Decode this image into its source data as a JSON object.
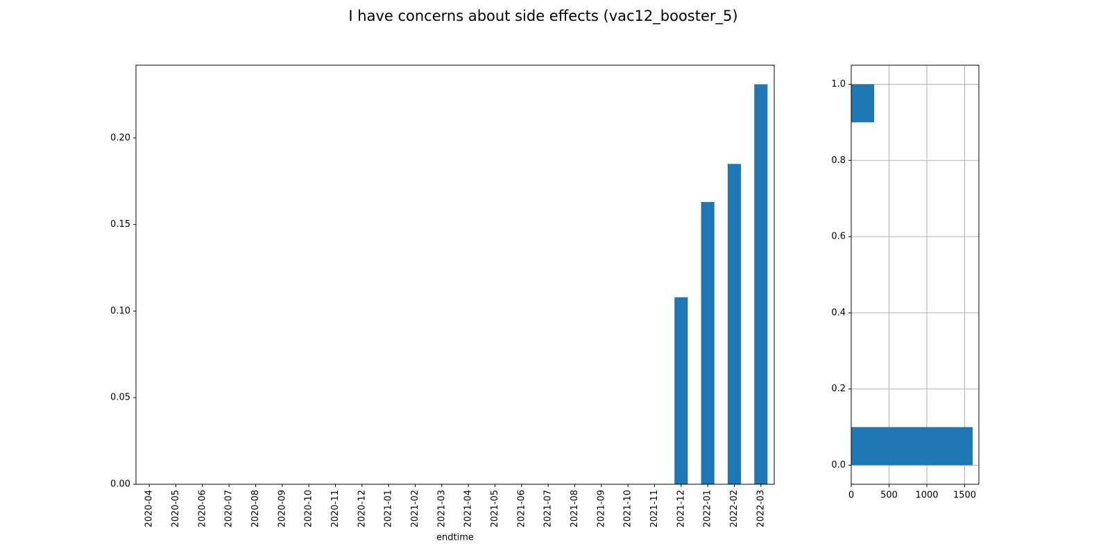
{
  "title": "I have concerns about side effects (vac12_booster_5)",
  "chart_data": [
    {
      "type": "bar",
      "x_label": "endtime",
      "categories": [
        "2020-04",
        "2020-05",
        "2020-06",
        "2020-07",
        "2020-08",
        "2020-09",
        "2020-10",
        "2020-11",
        "2020-12",
        "2021-01",
        "2021-02",
        "2021-03",
        "2021-04",
        "2021-05",
        "2021-06",
        "2021-07",
        "2021-08",
        "2021-09",
        "2021-10",
        "2021-11",
        "2021-12",
        "2022-01",
        "2022-02",
        "2022-03"
      ],
      "values": [
        0,
        0,
        0,
        0,
        0,
        0,
        0,
        0,
        0,
        0,
        0,
        0,
        0,
        0,
        0,
        0,
        0,
        0,
        0,
        0,
        0.108,
        0.163,
        0.185,
        0.231
      ],
      "color": "#1f77b4",
      "ylim": [
        0,
        0.242
      ],
      "yticks": [
        {
          "value": 0,
          "label": "0.00"
        },
        {
          "value": 0.05,
          "label": "0.05"
        },
        {
          "value": 0.1,
          "label": "0.10"
        },
        {
          "value": 0.15,
          "label": "0.15"
        },
        {
          "value": 0.2,
          "label": "0.20"
        }
      ],
      "grid": false
    },
    {
      "type": "histogram",
      "orientation": "horizontal",
      "bins": [
        0,
        0.1,
        0.2,
        0.3,
        0.4,
        0.5,
        0.6,
        0.7,
        0.8,
        0.9,
        1.0
      ],
      "values": [
        1606,
        0,
        0,
        0,
        0,
        0,
        0,
        0,
        0,
        303
      ],
      "color": "#1f77b4",
      "xlim": [
        0,
        1688
      ],
      "ylim": [
        -0.05,
        1.05
      ],
      "xticks": [
        0,
        500,
        1000,
        1500
      ],
      "yticks": [
        {
          "value": 0,
          "label": "0.0"
        },
        {
          "value": 0.2,
          "label": "0.2"
        },
        {
          "value": 0.4,
          "label": "0.4"
        },
        {
          "value": 0.6,
          "label": "0.6"
        },
        {
          "value": 0.8,
          "label": "0.8"
        },
        {
          "value": 1.0,
          "label": "1.0"
        }
      ],
      "grid": true
    }
  ]
}
